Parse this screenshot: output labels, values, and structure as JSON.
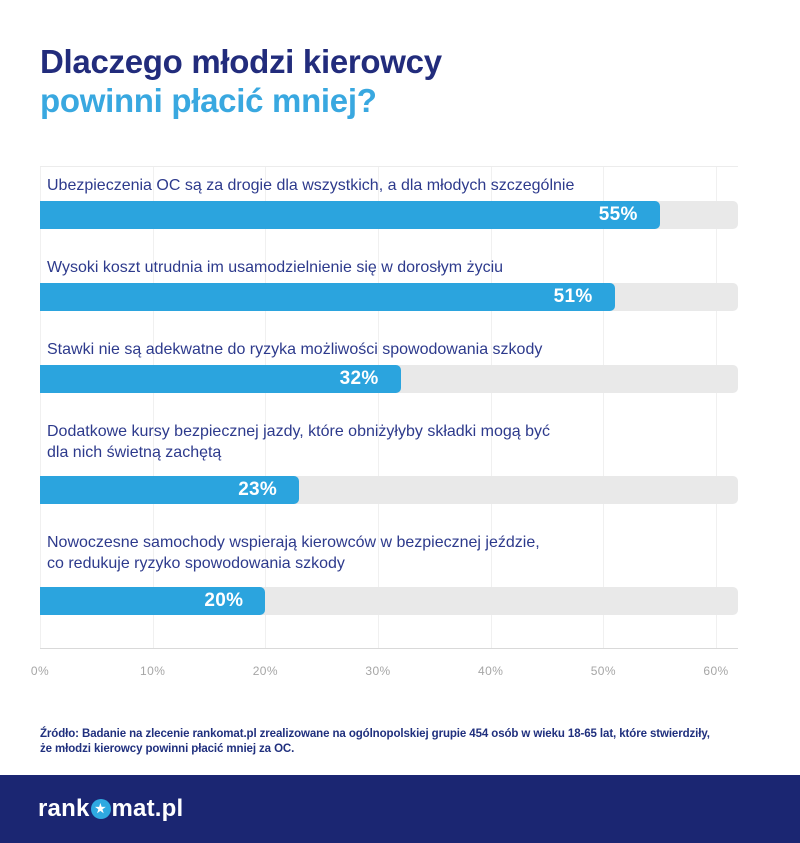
{
  "title": {
    "line1": "Dlaczego młodzi kierowcy",
    "line2": "powinni płacić mniej?"
  },
  "chart_data": {
    "type": "bar",
    "orientation": "horizontal",
    "title": "Dlaczego młodzi kierowcy powinni płacić mniej?",
    "xlabel": "",
    "ylabel": "",
    "xlim": [
      0,
      60
    ],
    "x_tick_labels": [
      "0%",
      "10%",
      "20%",
      "30%",
      "40%",
      "50%",
      "60%"
    ],
    "grid": "vertical",
    "legend": "none",
    "categories": [
      "Ubezpieczenia OC są za drogie dla wszystkich, a dla młodych szczególnie",
      "Wysoki koszt utrudnia im usamodzielnienie się w dorosłym życiu",
      "Stawki nie są adekwatne do ryzyka możliwości spowodowania szkody",
      "Dodatkowe kursy bezpiecznej jazdy, które obniżyłyby składki mogą być dla nich świetną zachętą",
      "Nowoczesne samochody wspierają kierowców w bezpiecznej jeździe, co redukuje ryzyko spowodowania szkody"
    ],
    "values": [
      55,
      51,
      32,
      23,
      20
    ],
    "bars": [
      {
        "lines": [
          "Ubezpieczenia OC są za drogie dla wszystkich, a dla młodych szczególnie"
        ],
        "value": 55,
        "value_label": "55%"
      },
      {
        "lines": [
          "Wysoki koszt utrudnia im usamodzielnienie się w dorosłym życiu"
        ],
        "value": 51,
        "value_label": "51%"
      },
      {
        "lines": [
          "Stawki nie są adekwatne do ryzyka możliwości spowodowania szkody"
        ],
        "value": 32,
        "value_label": "32%"
      },
      {
        "lines": [
          "Dodatkowe kursy bezpiecznej jazdy, które obniżyłyby składki mogą być",
          "dla nich świetną zachętą"
        ],
        "value": 23,
        "value_label": "23%"
      },
      {
        "lines": [
          "Nowoczesne samochody wspierają kierowców w bezpiecznej jeździe,",
          "co redukuje ryzyko spowodowania szkody"
        ],
        "value": 20,
        "value_label": "20%"
      }
    ]
  },
  "source": {
    "line1": "Źródło: Badanie na zlecenie rankomat.pl zrealizowane na ogólnopolskiej grupie 454 osób w wieku 18-65 lat, które stwierdziły,",
    "line2": "że młodzi kierowcy powinni płacić mniej za OC."
  },
  "footer": {
    "logo_prefix": "rank",
    "logo_suffix": "mat.pl",
    "star_glyph": "★"
  },
  "colors": {
    "bar_fill": "#2BA4DE",
    "bar_track": "#E9E9E9",
    "title_primary": "#222C7C",
    "title_accent": "#39A8E0",
    "category_label": "#2D3A8C",
    "value_label": "#FFFFFF",
    "axis_label": "#A6A6A6",
    "source_text": "#20307E",
    "footer_background": "#1B2672",
    "logo_star_background": "#2FA9E1"
  }
}
